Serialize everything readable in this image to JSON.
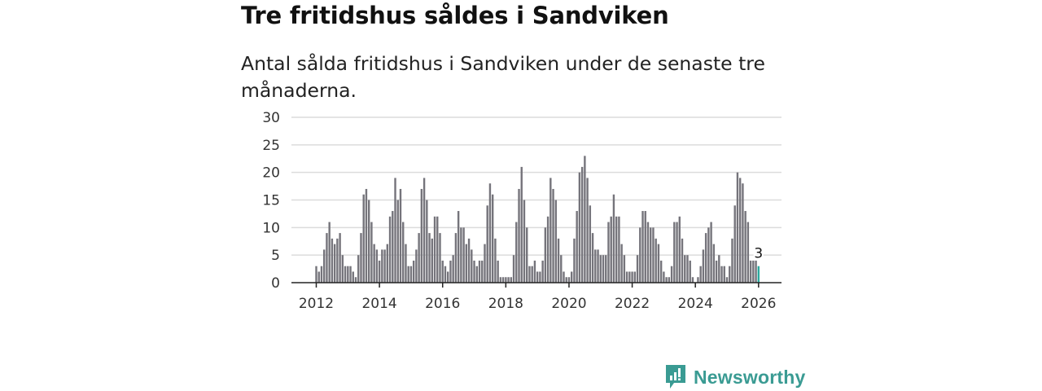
{
  "title": "Tre fritidshus såldes i Sandviken",
  "subtitle": "Antal sålda fritidshus i Sandviken under de senaste tre månaderna.",
  "brand": "Newsworthy",
  "colors": {
    "bar": "#75747b",
    "highlight": "#2ba99e",
    "brand": "#3a9b93"
  },
  "chart_data": {
    "type": "bar",
    "title": "Tre fritidshus såldes i Sandviken",
    "xlabel": "",
    "ylabel": "",
    "start": "2012-01",
    "frequency": "monthly",
    "ylim": [
      0,
      30
    ],
    "yticks": [
      "0",
      "5",
      "10",
      "15",
      "20",
      "25",
      "30"
    ],
    "xticks": [
      "2012",
      "2014",
      "2016",
      "2018",
      "2020",
      "2022",
      "2024",
      "2026"
    ],
    "grid": true,
    "highlight_label": "3",
    "values": [
      3,
      2,
      3,
      6,
      9,
      11,
      8,
      7,
      8,
      9,
      5,
      3,
      3,
      3,
      2,
      1,
      5,
      9,
      16,
      17,
      15,
      11,
      7,
      6,
      4,
      6,
      6,
      7,
      12,
      13,
      19,
      15,
      17,
      11,
      7,
      3,
      3,
      4,
      6,
      9,
      17,
      19,
      15,
      9,
      8,
      12,
      12,
      9,
      4,
      3,
      2,
      4,
      5,
      9,
      13,
      10,
      10,
      7,
      8,
      6,
      4,
      3,
      4,
      4,
      7,
      14,
      18,
      16,
      8,
      4,
      1,
      1,
      1,
      1,
      1,
      5,
      11,
      17,
      21,
      15,
      10,
      3,
      3,
      4,
      2,
      2,
      4,
      10,
      12,
      19,
      17,
      15,
      8,
      5,
      2,
      1,
      1,
      2,
      8,
      13,
      20,
      21,
      23,
      19,
      14,
      9,
      6,
      6,
      5,
      5,
      5,
      11,
      12,
      16,
      12,
      12,
      7,
      5,
      2,
      2,
      2,
      2,
      5,
      10,
      13,
      13,
      11,
      10,
      10,
      8,
      7,
      4,
      2,
      1,
      1,
      3,
      11,
      11,
      12,
      8,
      5,
      5,
      4,
      1,
      0,
      1,
      3,
      6,
      9,
      10,
      11,
      7,
      4,
      5,
      3,
      3,
      1,
      3,
      8,
      14,
      20,
      19,
      18,
      13,
      11,
      4,
      4,
      4,
      3
    ]
  }
}
